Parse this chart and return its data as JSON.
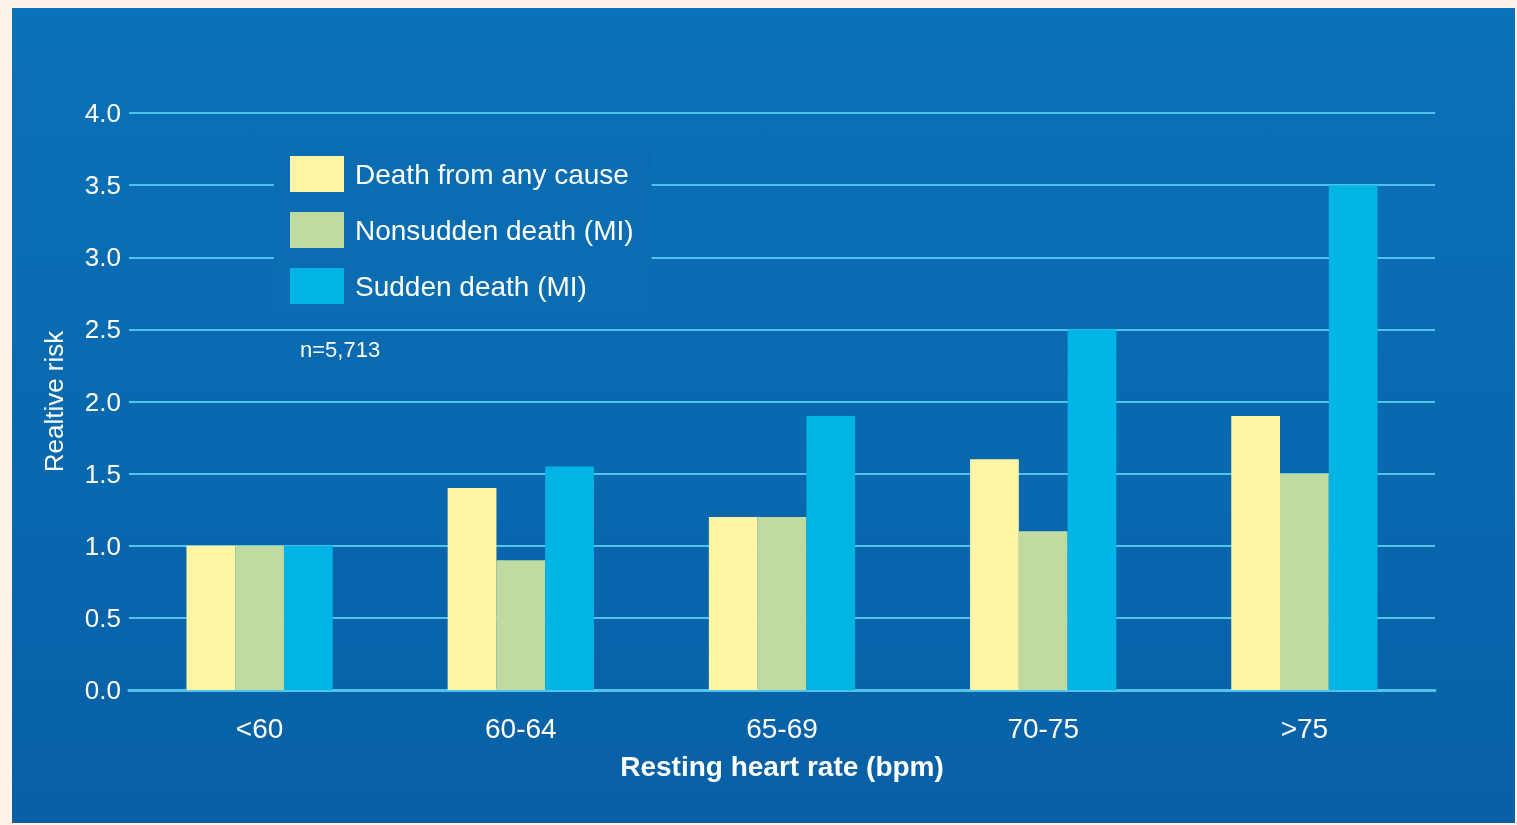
{
  "chart_data": {
    "type": "bar",
    "xlabel": "Resting heart rate (bpm)",
    "ylabel": "Realtive risk",
    "categories": [
      "<60",
      "60-64",
      "65-69",
      "70-75",
      ">75"
    ],
    "series": [
      {
        "name": "Death from any cause",
        "color": "#fff5a5",
        "values": [
          1.0,
          1.4,
          1.2,
          1.6,
          1.9
        ]
      },
      {
        "name": "Nonsudden death (MI)",
        "color": "#c0dba2",
        "values": [
          1.0,
          0.9,
          1.2,
          1.1,
          1.5
        ]
      },
      {
        "name": "Sudden death (MI)",
        "color": "#00b4e6",
        "values": [
          1.0,
          1.55,
          1.9,
          2.5,
          3.5
        ]
      }
    ],
    "ylim": [
      0,
      4.0
    ],
    "yticks": [
      {
        "value": 0,
        "label": "0.0"
      },
      {
        "value": 0.5,
        "label": "0.5"
      },
      {
        "value": 1.0,
        "label": "1.0"
      },
      {
        "value": 1.5,
        "label": "1.5"
      },
      {
        "value": 2.0,
        "label": "2.0"
      },
      {
        "value": 2.5,
        "label": "2.5"
      },
      {
        "value": 3.0,
        "label": "3.0"
      },
      {
        "value": 3.5,
        "label": "3.5"
      },
      {
        "value": 4.0,
        "label": "4.0"
      }
    ],
    "grid": "y",
    "legend": "top left",
    "annotations": [
      "n=5,713"
    ]
  }
}
